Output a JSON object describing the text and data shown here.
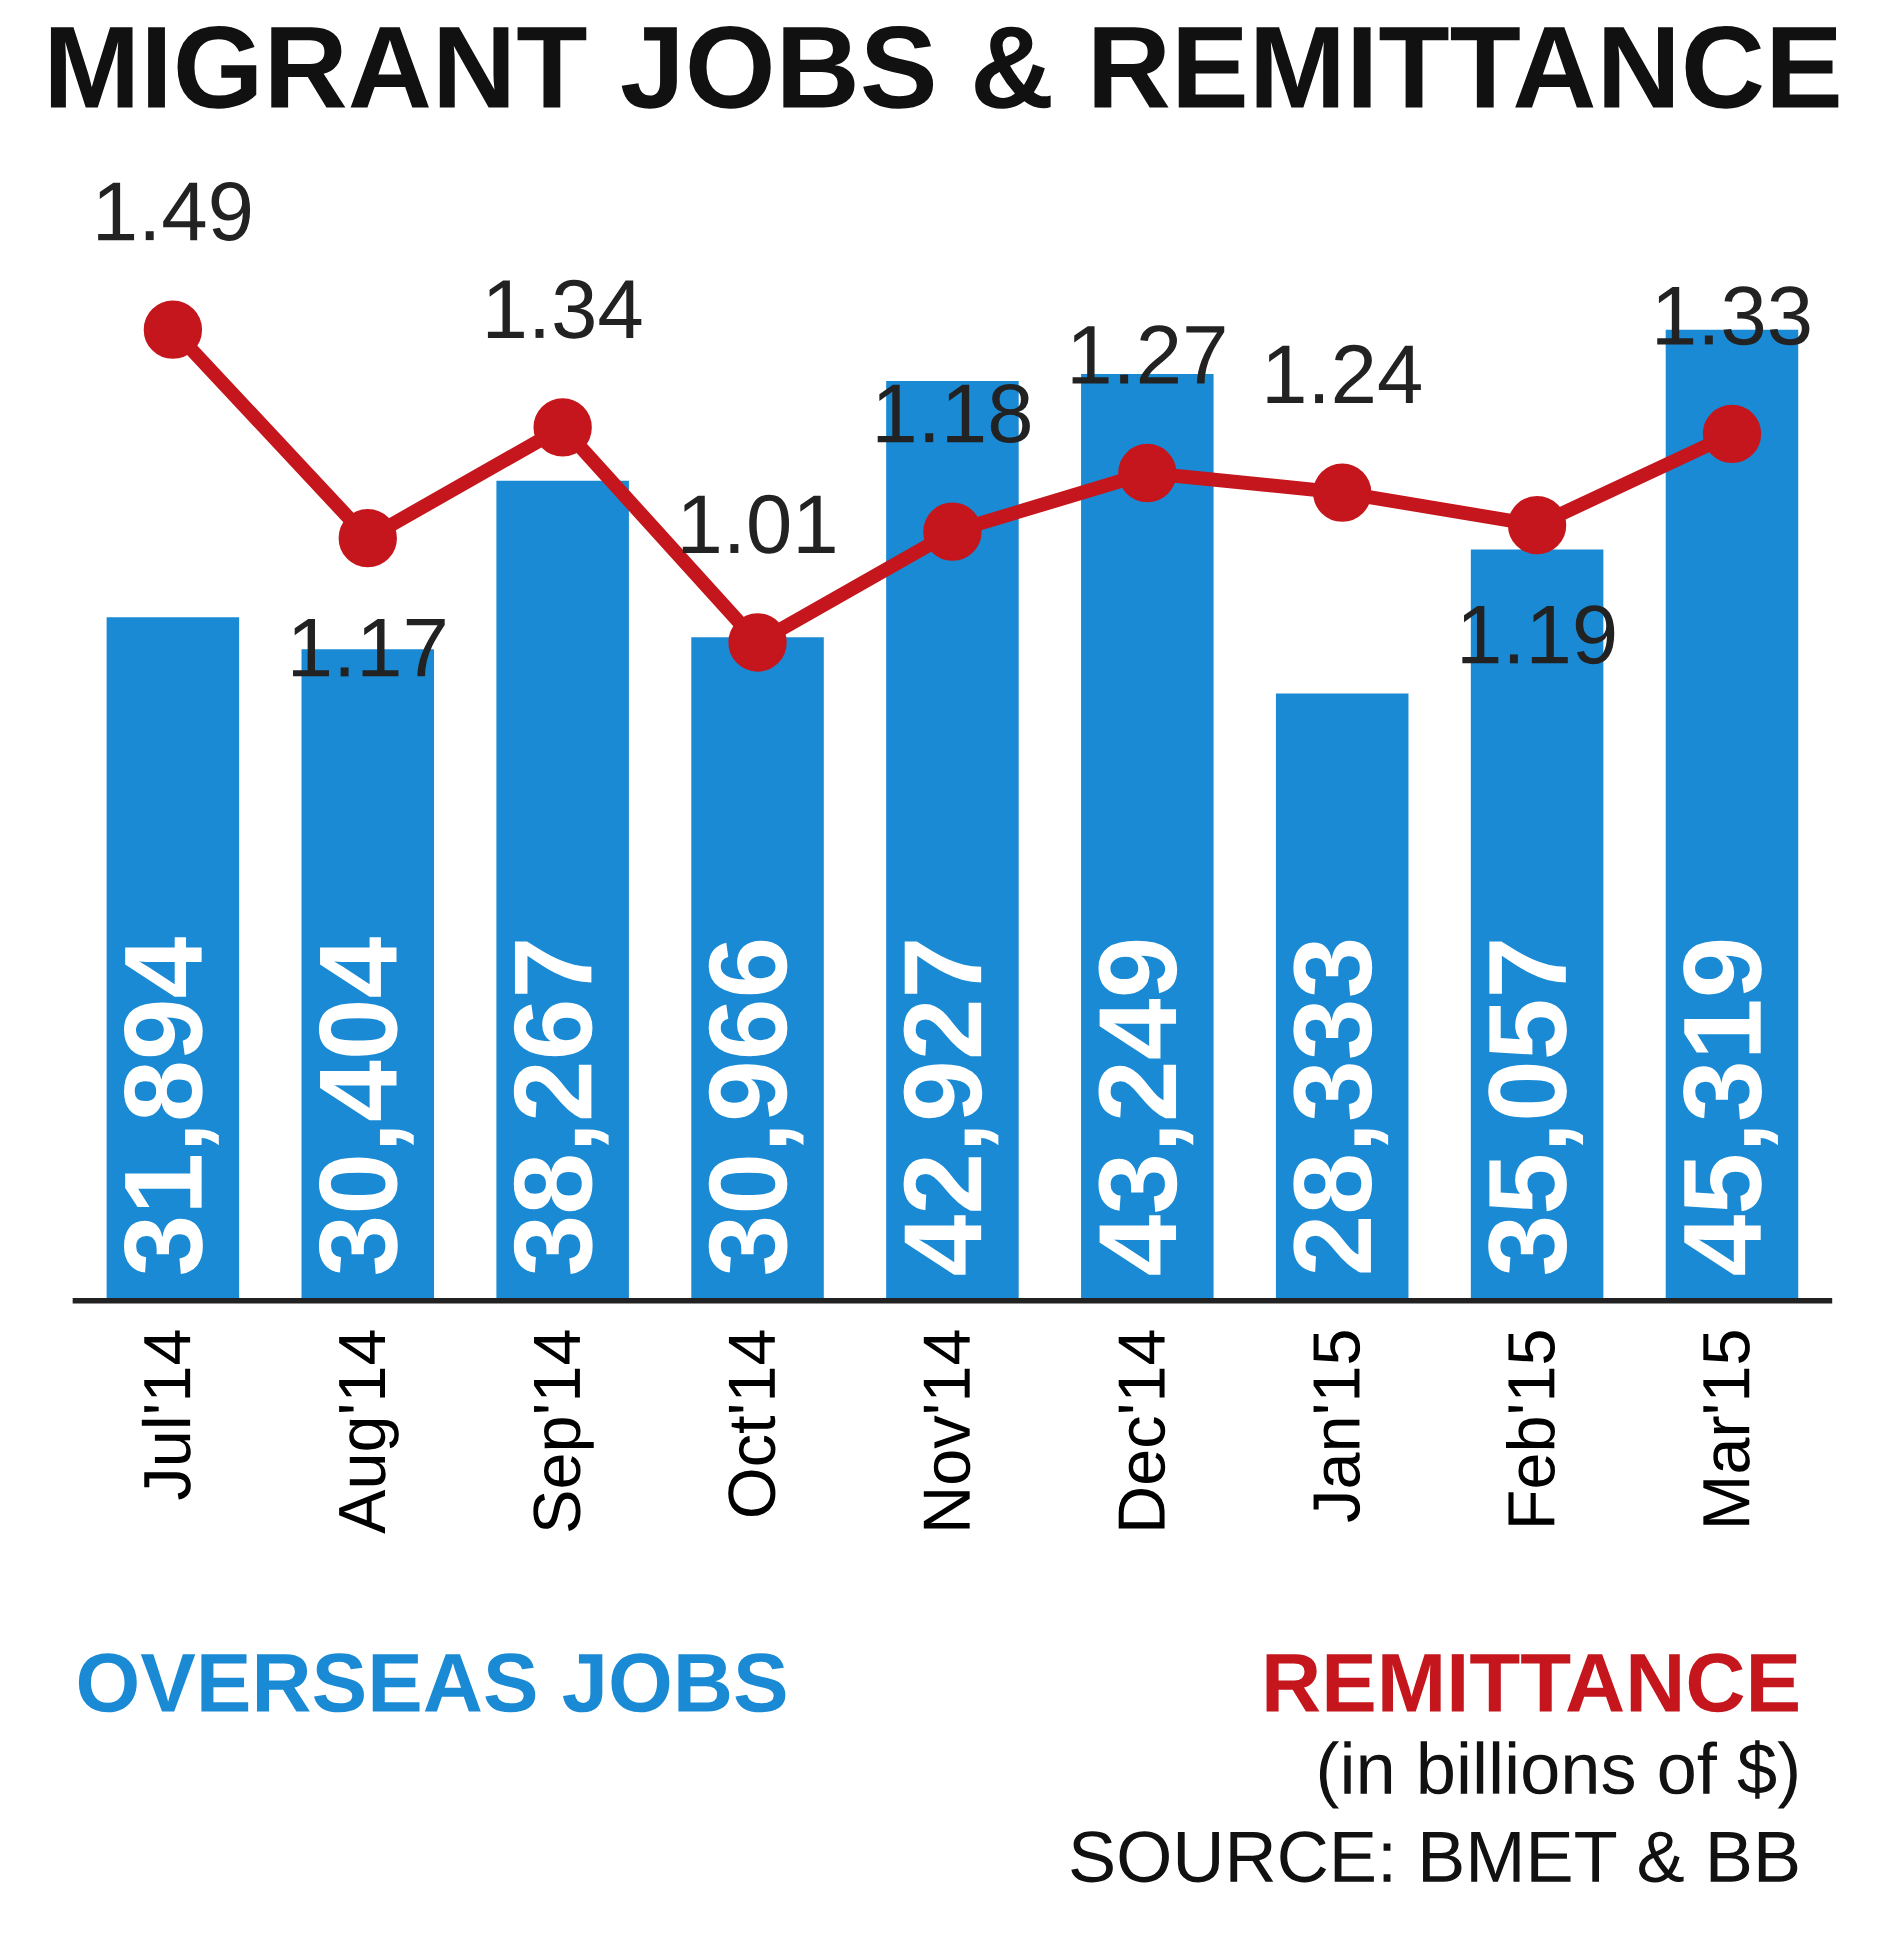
{
  "chart_data": {
    "type": "bar",
    "title": "MIGRANT JOBS & REMITTANCE",
    "categories": [
      "Jul'14",
      "Aug'14",
      "Sep'14",
      "Oct'14",
      "Nov'14",
      "Dec'14",
      "Jan'15",
      "Feb'15",
      "Mar'15"
    ],
    "series": [
      {
        "name": "OVERSEAS JOBS",
        "color": "#1a8ad4",
        "values": [
          31894,
          30404,
          38267,
          30966,
          42927,
          43249,
          28333,
          35057,
          45319
        ],
        "value_labels": [
          "31,894",
          "30,404",
          "38,267",
          "30,966",
          "42,927",
          "43,249",
          "28,333",
          "35,057",
          "45,319"
        ]
      },
      {
        "name": "REMITTANCE",
        "type": "line",
        "axis": "y2",
        "color": "#c4161c",
        "marker": "circle",
        "values": [
          1.49,
          1.17,
          1.34,
          1.01,
          1.18,
          1.27,
          1.24,
          1.19,
          1.33
        ]
      }
    ],
    "data_labels": true,
    "tick_labels": "x",
    "legend": false,
    "annotations": [
      "(in billions of $)",
      "SOURCE: BMET & BB"
    ]
  }
}
